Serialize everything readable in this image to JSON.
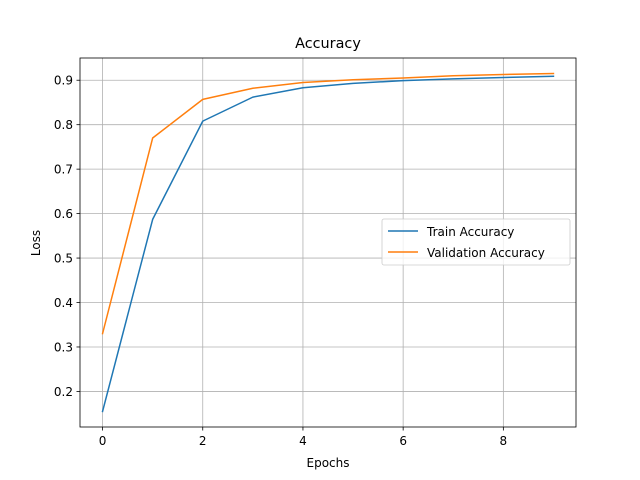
{
  "chart_data": {
    "type": "line",
    "title": "Accuracy",
    "xlabel": "Epochs",
    "ylabel": "Loss",
    "x": [
      0,
      1,
      2,
      3,
      4,
      5,
      6,
      7,
      8,
      9
    ],
    "xlim": [
      -0.45,
      9.45
    ],
    "ylim": [
      0.12,
      0.95
    ],
    "xticks": [
      0,
      2,
      4,
      6,
      8
    ],
    "yticks": [
      0.2,
      0.3,
      0.4,
      0.5,
      0.6,
      0.7,
      0.8,
      0.9
    ],
    "grid": true,
    "legend_position": "center-right",
    "series": [
      {
        "name": "Train Accuracy",
        "color": "#1f77b4",
        "values": [
          0.155,
          0.587,
          0.808,
          0.862,
          0.883,
          0.893,
          0.899,
          0.903,
          0.906,
          0.909
        ]
      },
      {
        "name": "Validation Accuracy",
        "color": "#ff7f0e",
        "values": [
          0.33,
          0.77,
          0.857,
          0.882,
          0.895,
          0.901,
          0.905,
          0.91,
          0.913,
          0.915
        ]
      }
    ]
  }
}
